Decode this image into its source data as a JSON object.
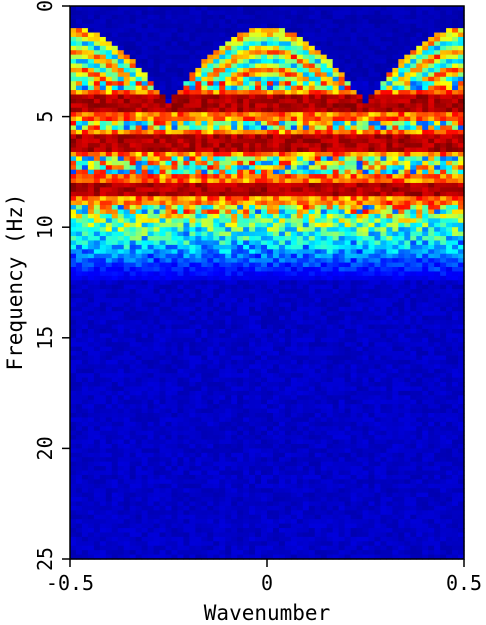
{
  "chart_data": {
    "type": "heatmap",
    "title": "",
    "xlabel": "Wavenumber",
    "ylabel": "Frequency (Hz)",
    "xlim": [
      -0.5,
      0.5
    ],
    "ylim": [
      25,
      0
    ],
    "x_ticks": [
      {
        "value": -0.5,
        "label": "-0.5"
      },
      {
        "value": 0,
        "label": "0"
      },
      {
        "value": 0.5,
        "label": "0.5"
      }
    ],
    "y_ticks": [
      {
        "value": 0,
        "label": "0"
      },
      {
        "value": 5,
        "label": "5"
      },
      {
        "value": 10,
        "label": "10"
      },
      {
        "value": 15,
        "label": "15"
      },
      {
        "value": 20,
        "label": "20"
      },
      {
        "value": 25,
        "label": "25"
      }
    ],
    "colormap": [
      "#00008f",
      "#0000ff",
      "#00ffff",
      "#ffff00",
      "#ff0000",
      "#800000"
    ],
    "grid": false,
    "legend": "none",
    "features": {
      "arc_apex_wavenumbers": [
        -0.5,
        0,
        0.5
      ],
      "arc_top_frequency": 1.0,
      "arc_bottom_frequency": 4.5,
      "dense_energy_band": [
        3.5,
        9.5
      ],
      "strong_horizontal_events": [
        4.4,
        6.2,
        8.3
      ],
      "speckle_band": [
        9.5,
        12.5
      ],
      "noise_floor_below": 12.5
    }
  }
}
